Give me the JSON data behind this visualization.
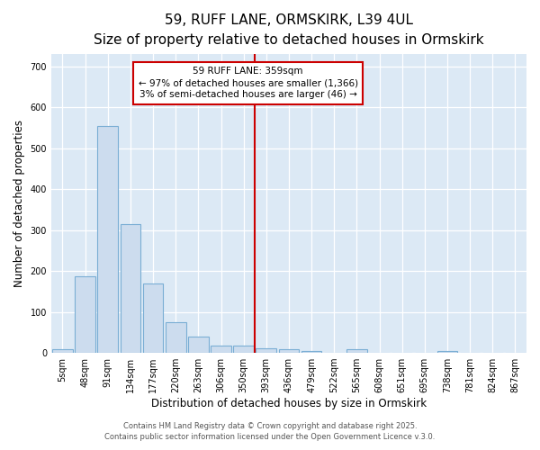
{
  "title": "59, RUFF LANE, ORMSKIRK, L39 4UL",
  "subtitle": "Size of property relative to detached houses in Ormskirk",
  "xlabel": "Distribution of detached houses by size in Ormskirk",
  "ylabel": "Number of detached properties",
  "bar_labels": [
    "5sqm",
    "48sqm",
    "91sqm",
    "134sqm",
    "177sqm",
    "220sqm",
    "263sqm",
    "306sqm",
    "350sqm",
    "393sqm",
    "436sqm",
    "479sqm",
    "522sqm",
    "565sqm",
    "608sqm",
    "651sqm",
    "695sqm",
    "738sqm",
    "781sqm",
    "824sqm",
    "867sqm"
  ],
  "bar_values": [
    8,
    188,
    555,
    315,
    170,
    75,
    40,
    17,
    17,
    12,
    8,
    5,
    0,
    10,
    0,
    0,
    0,
    5,
    0,
    0,
    0
  ],
  "bar_color": "#ccdcee",
  "bar_edge_color": "#7aaed4",
  "bar_edge_width": 0.8,
  "vline_x_pos": 8.5,
  "vline_color": "#cc0000",
  "annotation_line1": "59 RUFF LANE: 359sqm",
  "annotation_line2": "← 97% of detached houses are smaller (1,366)",
  "annotation_line3": "3% of semi-detached houses are larger (46) →",
  "annotation_box_color": "#ffffff",
  "annotation_box_edge": "#cc0000",
  "ylim": [
    0,
    730
  ],
  "yticks": [
    0,
    100,
    200,
    300,
    400,
    500,
    600,
    700
  ],
  "background_color": "#dce9f5",
  "fig_background": "#ffffff",
  "grid_color": "#ffffff",
  "title_fontsize": 11,
  "subtitle_fontsize": 9.5,
  "axis_label_fontsize": 8.5,
  "tick_fontsize": 7,
  "annotation_fontsize": 7.5,
  "footer_line1": "Contains HM Land Registry data © Crown copyright and database right 2025.",
  "footer_line2": "Contains public sector information licensed under the Open Government Licence v.3.0."
}
